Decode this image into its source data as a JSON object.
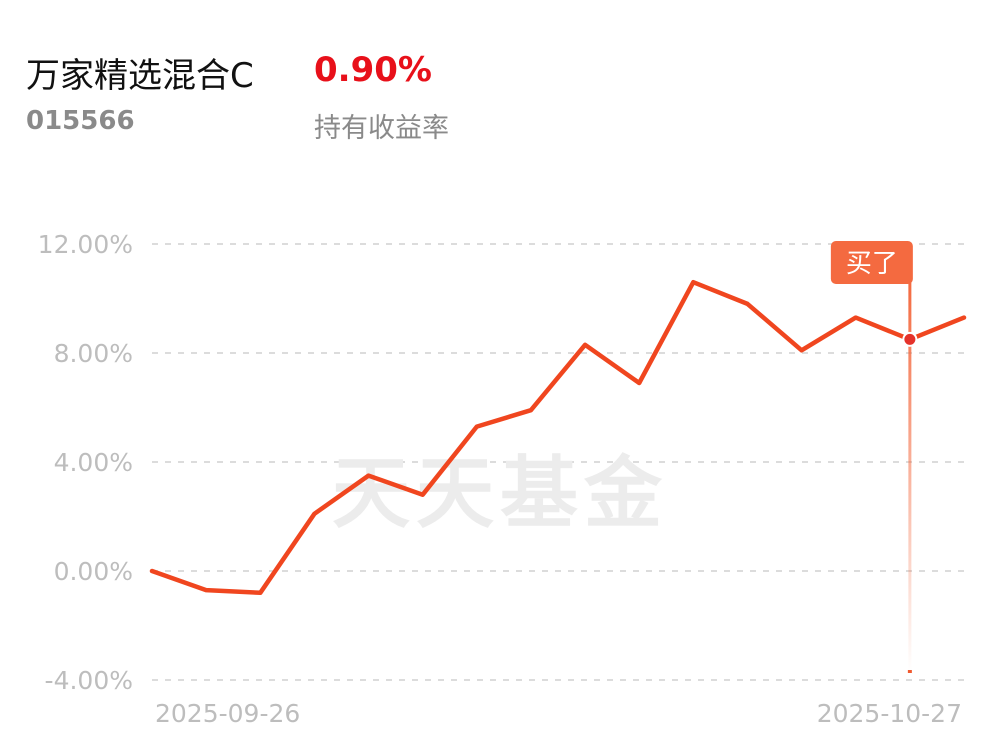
{
  "fund": {
    "name": "万家精选混合C",
    "code": "015566",
    "holding_yield": "0.90%",
    "holding_yield_label": "持有收益率"
  },
  "watermark": "天天基金",
  "buy_marker": {
    "label": "买了",
    "x": "2025-10-24",
    "y": 8.5
  },
  "colors": {
    "line": "#f0461f",
    "yield": "#e8101a",
    "marker": "#f46a40",
    "grid": "#dcdcdc",
    "axis_text": "#bdbdbd"
  },
  "chart_data": {
    "type": "line",
    "title": "",
    "xlabel": "",
    "ylabel": "",
    "ylim": [
      -4,
      12
    ],
    "yticks": [
      12,
      8,
      4,
      0,
      -4
    ],
    "ytick_labels": [
      "12.00%",
      "8.00%",
      "4.00%",
      "0.00%",
      "-4.00%"
    ],
    "x_tick_labels": [
      "2025-09-26",
      "2025-10-27"
    ],
    "grid": true,
    "series": [
      {
        "x": [
          "2025-09-26",
          "2025-09-29",
          "2025-09-30",
          "2025-10-09",
          "2025-10-10",
          "2025-10-13",
          "2025-10-14",
          "2025-10-15",
          "2025-10-16",
          "2025-10-17",
          "2025-10-20",
          "2025-10-21",
          "2025-10-22",
          "2025-10-23",
          "2025-10-24",
          "2025-10-27"
        ],
        "values": [
          0.0,
          -0.7,
          -0.8,
          2.1,
          3.5,
          2.8,
          5.3,
          5.9,
          8.3,
          6.9,
          10.6,
          9.8,
          8.1,
          9.3,
          8.5,
          9.3
        ]
      }
    ]
  }
}
